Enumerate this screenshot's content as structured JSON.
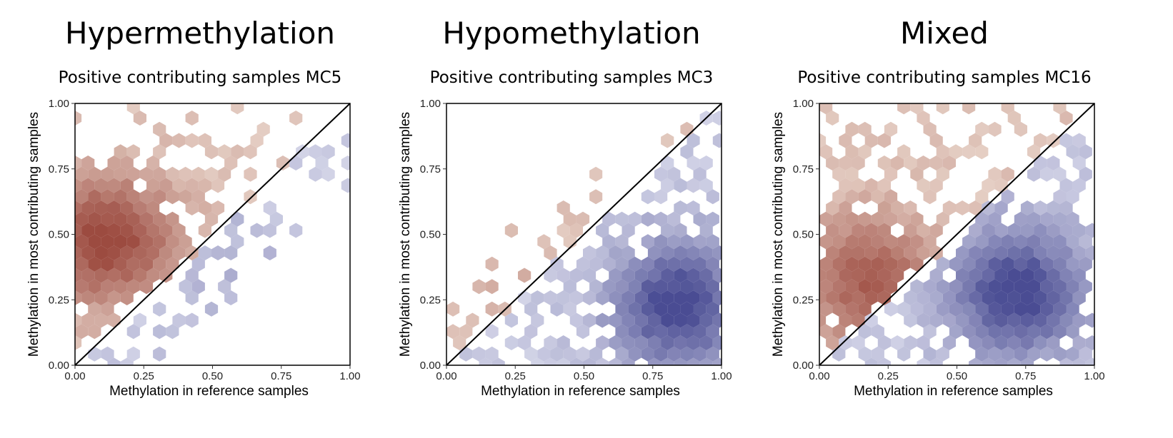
{
  "charts": [
    {
      "title": "Hypermethylation",
      "subtitle": "Positive contributing samples MC5"
    },
    {
      "title": "Hypomethylation",
      "subtitle": "Positive contributing samples MC3"
    },
    {
      "title": "Mixed",
      "subtitle": "Positive contributing samples MC16"
    }
  ],
  "colors": {
    "above_diagonal": "#8b2b1e",
    "below_diagonal": "#2a2d80",
    "light_above": "#e8d4c8",
    "light_below": "#dadbec"
  },
  "chart_data": [
    {
      "type": "heatmap",
      "title": "Positive contributing samples MC5",
      "xlabel": "Methylation in reference samples",
      "ylabel": "Methylation in most contributing samples",
      "xlim": [
        0,
        1
      ],
      "ylim": [
        0,
        1
      ],
      "xticks": [
        "0.00",
        "0.25",
        "0.50",
        "0.75",
        "1.00"
      ],
      "yticks": [
        "0.00",
        "0.25",
        "0.50",
        "0.75",
        "1.00"
      ],
      "reference_line": "y = x",
      "density_peaks_above": [
        {
          "x": 0.12,
          "y": 0.48,
          "w": 1.0
        }
      ],
      "density_peaks_below": [
        {
          "x": 0.55,
          "y": 0.38,
          "w": 0.15
        }
      ]
    },
    {
      "type": "heatmap",
      "title": "Positive contributing samples MC3",
      "xlabel": "Methylation in reference samples",
      "ylabel": "Methylation in most contributing samples",
      "xlim": [
        0,
        1
      ],
      "ylim": [
        0,
        1
      ],
      "xticks": [
        "0.00",
        "0.25",
        "0.50",
        "0.75",
        "1.00"
      ],
      "yticks": [
        "0.00",
        "0.25",
        "0.50",
        "0.75",
        "1.00"
      ],
      "reference_line": "y = x",
      "density_peaks_above": [
        {
          "x": 0.15,
          "y": 0.3,
          "w": 0.15
        }
      ],
      "density_peaks_below": [
        {
          "x": 0.84,
          "y": 0.23,
          "w": 1.0
        }
      ]
    },
    {
      "type": "heatmap",
      "title": "Positive contributing samples MC16",
      "xlabel": "Methylation in reference samples",
      "ylabel": "Methylation in most contributing samples",
      "xlim": [
        0,
        1
      ],
      "ylim": [
        0,
        1
      ],
      "xticks": [
        "0.00",
        "0.25",
        "0.50",
        "0.75",
        "1.00"
      ],
      "yticks": [
        "0.00",
        "0.25",
        "0.50",
        "0.75",
        "1.00"
      ],
      "reference_line": "y = x",
      "density_peaks_above": [
        {
          "x": 0.18,
          "y": 0.32,
          "w": 0.8
        }
      ],
      "density_peaks_below": [
        {
          "x": 0.72,
          "y": 0.28,
          "w": 1.0
        }
      ]
    }
  ]
}
